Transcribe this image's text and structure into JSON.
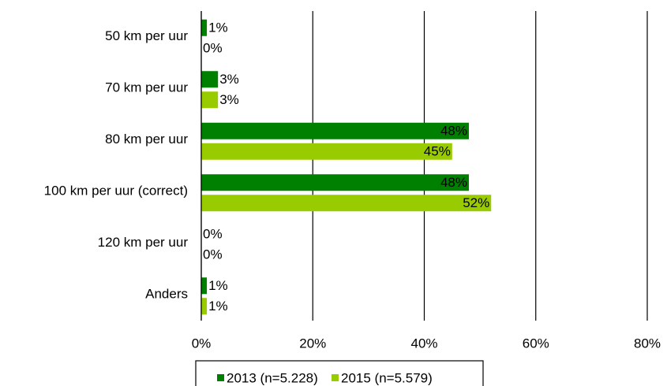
{
  "chart_data": {
    "type": "hbar",
    "categories": [
      "50 km per uur",
      "70 km per uur",
      "80 km per uur",
      "100 km per uur (correct)",
      "120 km per uur",
      "Anders"
    ],
    "series": [
      {
        "name": "2013 (n=5.228)",
        "color": "#008000",
        "values": [
          1,
          3,
          48,
          48,
          0,
          1
        ],
        "value_labels": [
          "1%",
          "3%",
          "48%",
          "48%",
          "0%",
          "1%"
        ]
      },
      {
        "name": "2015 (n=5.579)",
        "color": "#99cc00",
        "values": [
          0,
          3,
          45,
          52,
          0,
          1
        ],
        "value_labels": [
          "0%",
          "3%",
          "45%",
          "52%",
          "0%",
          "1%"
        ]
      }
    ],
    "xlim": [
      0,
      80
    ],
    "xticks": [
      {
        "value": 0,
        "label": "0%"
      },
      {
        "value": 20,
        "label": "20%"
      },
      {
        "value": 40,
        "label": "40%"
      },
      {
        "value": 60,
        "label": "60%"
      },
      {
        "value": 80,
        "label": "80%"
      }
    ],
    "grid": true,
    "legend": "bottom"
  }
}
